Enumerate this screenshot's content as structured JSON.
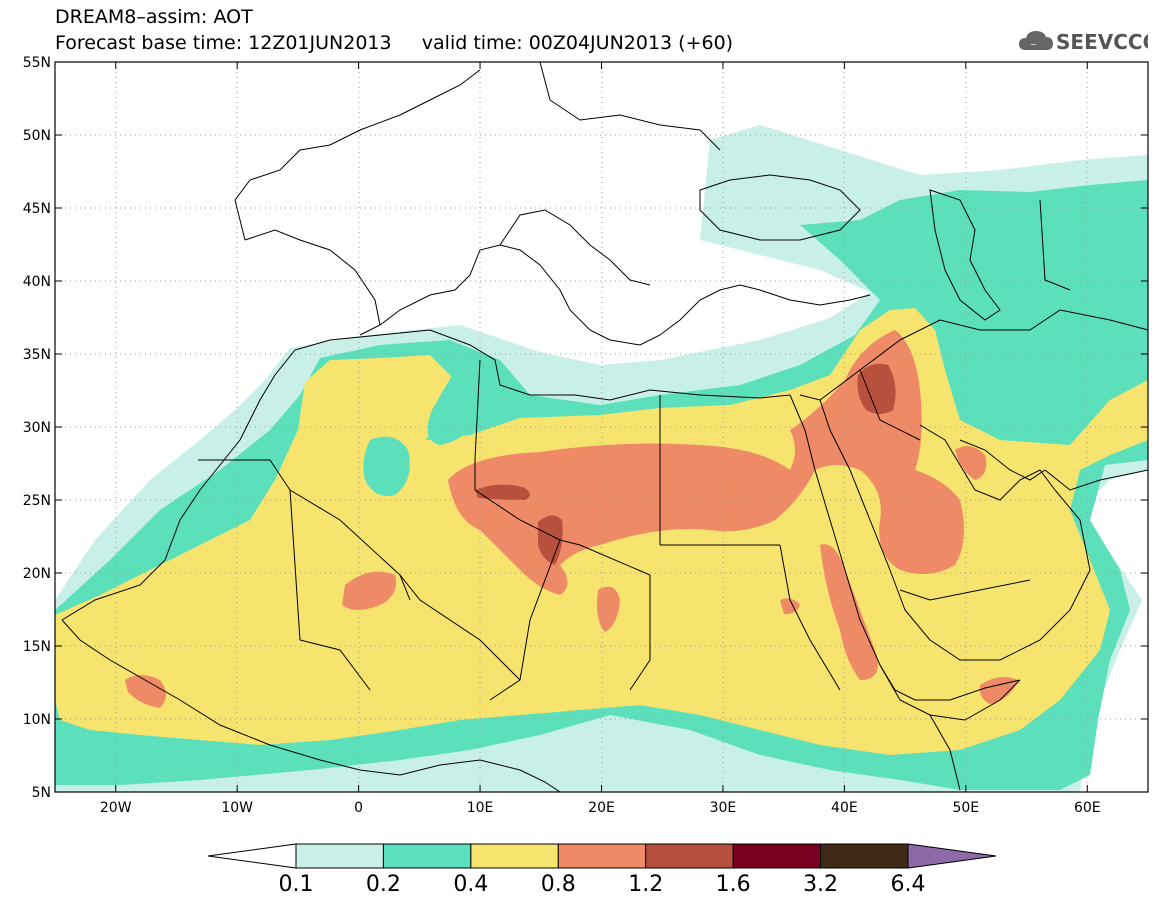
{
  "title": {
    "line1": "DREAM8–assim: AOT",
    "line2": "Forecast base time: 12Z01JUN2013     valid time: 00Z04JUN2013 (+60)"
  },
  "logo": {
    "text": "SEEVCCC",
    "icon": "cloud-icon"
  },
  "map": {
    "lon_range": [
      -25,
      65
    ],
    "lat_range": [
      5,
      55
    ],
    "lat_ticks": [
      "5N",
      "10N",
      "15N",
      "20N",
      "25N",
      "30N",
      "35N",
      "40N",
      "45N",
      "50N",
      "55N"
    ],
    "lon_ticks": [
      "20W",
      "10W",
      "0",
      "10E",
      "20E",
      "30E",
      "40E",
      "50E",
      "60E"
    ],
    "grid": "dotted",
    "variable": "AOT"
  },
  "colorbar": {
    "labels": [
      "0.1",
      "0.2",
      "0.4",
      "0.8",
      "1.2",
      "1.6",
      "3.2",
      "6.4"
    ],
    "colors": [
      "#ffffff",
      "#c8f0e8",
      "#5ce0bc",
      "#f7e46e",
      "#ee8a66",
      "#b8503e",
      "#7a0022",
      "#3f2a18",
      "#8f6aa8"
    ]
  }
}
